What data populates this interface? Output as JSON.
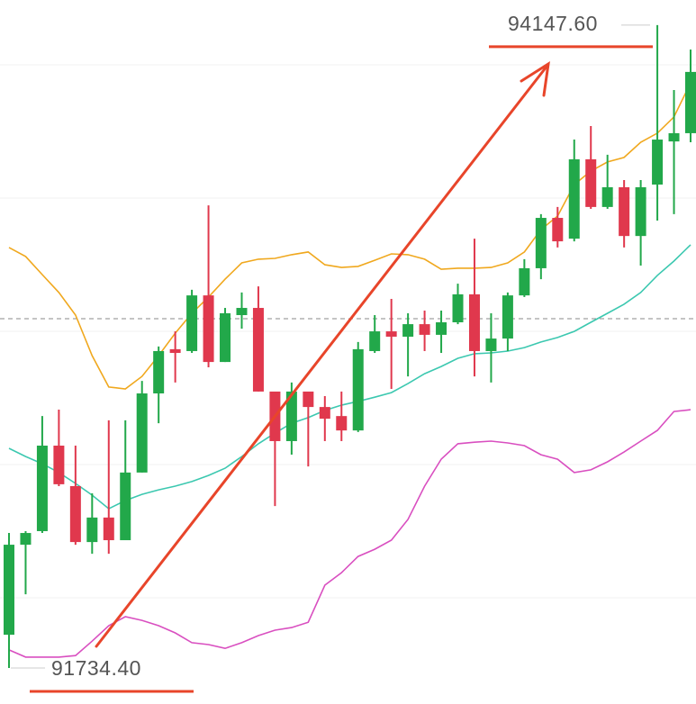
{
  "chart_data": {
    "type": "candlestick",
    "up_color": "#22a84a",
    "down_color": "#e0384d",
    "ylim": [
      91599,
      94242
    ],
    "open": [
      91859,
      92197,
      92248,
      92569,
      92417,
      92207,
      92299,
      92214,
      92468,
      92765,
      92931,
      92924,
      93133,
      92883,
      93059,
      93086,
      92772,
      92586,
      92772,
      92714,
      92680,
      92626,
      92924,
      92998,
      92978,
      93025,
      92985,
      93032,
      93137,
      92924,
      92971,
      93133,
      93235,
      93424,
      93346,
      93644,
      93465,
      93539,
      93356,
      93549,
      93711,
      93742
    ],
    "high": [
      92241,
      92248,
      92680,
      92704,
      92569,
      92390,
      92664,
      92664,
      92812,
      92941,
      92998,
      93154,
      93471,
      93086,
      93144,
      93167,
      92772,
      92806,
      92772,
      92755,
      92772,
      92958,
      93059,
      93120,
      93066,
      93076,
      93076,
      93177,
      93346,
      93066,
      93144,
      93269,
      93438,
      93465,
      93718,
      93769,
      93661,
      93566,
      93566,
      94147.6,
      93904,
      94056
    ],
    "low": [
      91734.4,
      92011,
      92241,
      92417,
      92197,
      92163,
      92163,
      92214,
      92468,
      92653,
      92806,
      92917,
      92863,
      92883,
      93008,
      92772,
      92342,
      92535,
      92491,
      92586,
      92586,
      92620,
      92917,
      92782,
      92829,
      92924,
      92917,
      93025,
      92829,
      92806,
      92924,
      93127,
      93194,
      93313,
      93336,
      93458,
      93458,
      93313,
      93245,
      93414,
      93438,
      93708
    ],
    "close": [
      92197,
      92241,
      92569,
      92424,
      92207,
      92299,
      92214,
      92468,
      92765,
      92924,
      92917,
      93133,
      92883,
      93066,
      93086,
      92772,
      92586,
      92772,
      92714,
      92670,
      92626,
      92931,
      92998,
      92978,
      93025,
      92985,
      93032,
      93137,
      92924,
      92971,
      93133,
      93235,
      93424,
      93336,
      93644,
      93465,
      93539,
      93356,
      93539,
      93718,
      93742,
      93972
    ],
    "series": [
      {
        "color": "#f0a81e",
        "values": [
          93313,
          93279,
          93211,
          93144,
          93059,
          92907,
          92789,
          92782,
          92829,
          92907,
          92991,
          93066,
          93127,
          93194,
          93255,
          93269,
          93272,
          93286,
          93296,
          93248,
          93238,
          93242,
          93265,
          93289,
          93286,
          93269,
          93231,
          93235,
          93235,
          93238,
          93255,
          93296,
          93380,
          93431,
          93549,
          93600,
          93634,
          93651,
          93708,
          93742,
          93803,
          93931
        ]
      },
      {
        "color": "#3cc8b0",
        "values": [
          92559,
          92528,
          92501,
          92468,
          92427,
          92383,
          92332,
          92363,
          92386,
          92403,
          92417,
          92434,
          92457,
          92484,
          92528,
          92576,
          92616,
          92653,
          92674,
          92701,
          92721,
          92735,
          92751,
          92768,
          92802,
          92839,
          92866,
          92897,
          92914,
          92917,
          92924,
          92937,
          92958,
          92975,
          92998,
          93032,
          93066,
          93100,
          93144,
          93208,
          93262,
          93323
        ]
      },
      {
        "color": "#d94fc0",
        "values": [
          91802,
          91775,
          91775,
          91775,
          91781,
          91835,
          91893,
          91927,
          91913,
          91893,
          91866,
          91829,
          91822,
          91808,
          91829,
          91856,
          91876,
          91886,
          91906,
          92045,
          92092,
          92153,
          92180,
          92214,
          92292,
          92417,
          92518,
          92576,
          92582,
          92586,
          92579,
          92569,
          92535,
          92518,
          92468,
          92478,
          92508,
          92545,
          92586,
          92626,
          92697,
          92704
        ]
      }
    ],
    "annotations": [
      {
        "label": "94147.60",
        "value": 94147.6,
        "color": "#e8452a"
      },
      {
        "label": "91734.40",
        "value": 91734.4,
        "color": "#e8452a"
      }
    ]
  }
}
